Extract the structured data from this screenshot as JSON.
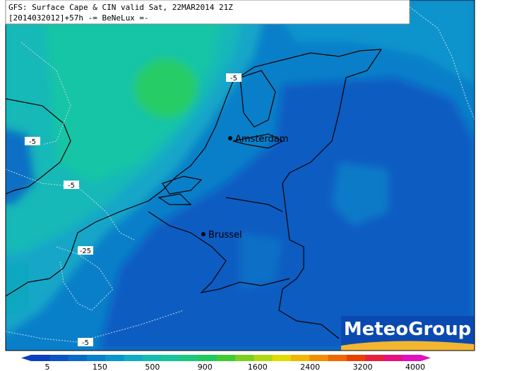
{
  "title": {
    "line1": "GFS: Surface Cape & CIN valid Sat, 22MAR2014 21Z",
    "line2": "[2014032012]+57h -= BeNeLux =-"
  },
  "cities": [
    "Amsterdam",
    "Brussel"
  ],
  "contour_labels": [
    "-5",
    "-5",
    "-5",
    "-25",
    "-5"
  ],
  "logo": "MeteoGroup",
  "colorbar": {
    "colors": [
      "#0a40c0",
      "#0a55c4",
      "#0a6ac8",
      "#0a80cc",
      "#0a96cc",
      "#10acc4",
      "#14bcb0",
      "#18c49a",
      "#1cc880",
      "#20c860",
      "#40cc30",
      "#7ad020",
      "#b0d810",
      "#e0dc00",
      "#f0b800",
      "#f09000",
      "#f06800",
      "#ec4000",
      "#e82040",
      "#e8107c",
      "#e010c0"
    ],
    "ticks": [
      5,
      150,
      500,
      900,
      1600,
      2400,
      3200,
      4000
    ]
  }
}
